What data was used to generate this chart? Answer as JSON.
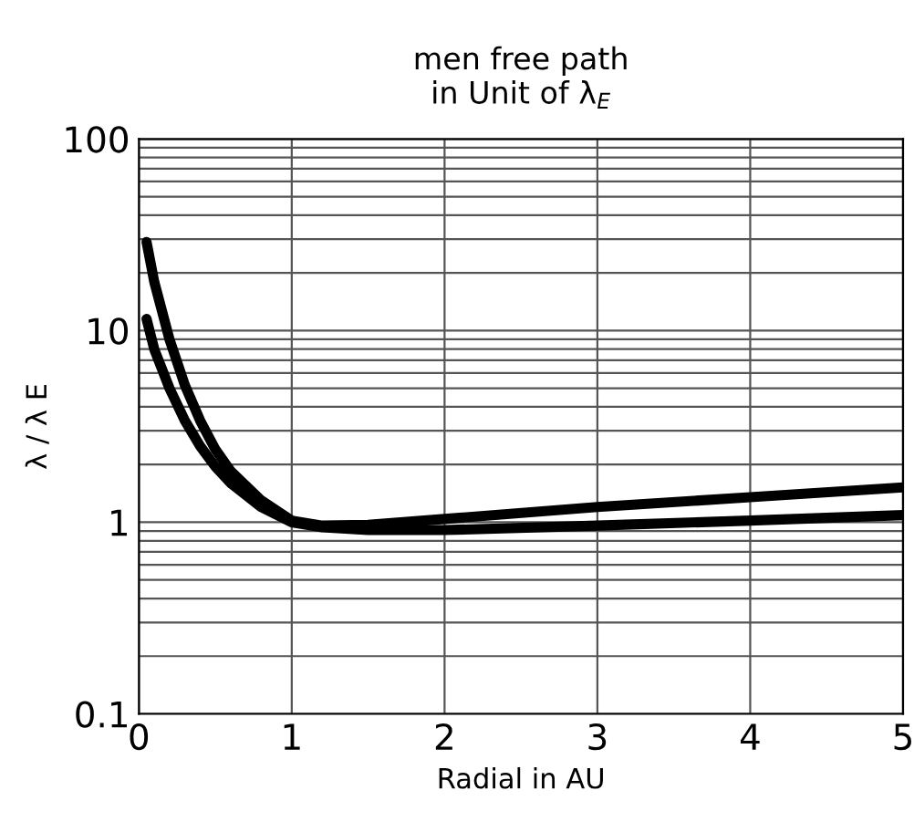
{
  "chart_data": {
    "type": "line",
    "title": "men free path\nin Unit of λ$_{E}$",
    "xlabel": "Radial in AU",
    "ylabel": "λ / λ E",
    "log": "y",
    "grid": true,
    "legend": false,
    "marker": "none",
    "line_style": "solid",
    "xlim": [
      0,
      5
    ],
    "xticks": [
      0,
      1,
      2,
      3,
      4,
      5
    ],
    "ylim": [
      0.1,
      100
    ],
    "yticks": [
      {
        "value": 0.1,
        "label": "0.1"
      },
      {
        "value": 0.2,
        "label": null
      },
      {
        "value": 0.3,
        "label": null
      },
      {
        "value": 0.4,
        "label": null
      },
      {
        "value": 0.5,
        "label": null
      },
      {
        "value": 0.6,
        "label": null
      },
      {
        "value": 0.7,
        "label": null
      },
      {
        "value": 0.8,
        "label": null
      },
      {
        "value": 0.9,
        "label": null
      },
      1,
      {
        "value": 2,
        "label": null
      },
      {
        "value": 3,
        "label": null
      },
      {
        "value": 4,
        "label": null
      },
      {
        "value": 5,
        "label": null
      },
      {
        "value": 6,
        "label": null
      },
      {
        "value": 7,
        "label": null
      },
      {
        "value": 8,
        "label": null
      },
      {
        "value": 9,
        "label": null
      },
      10,
      {
        "value": 20,
        "label": null
      },
      {
        "value": 30,
        "label": null
      },
      {
        "value": 40,
        "label": null
      },
      {
        "value": 50,
        "label": null
      },
      {
        "value": 60,
        "label": null
      },
      {
        "value": 70,
        "label": null
      },
      {
        "value": 80,
        "label": null
      },
      {
        "value": 90,
        "label": null
      },
      100
    ],
    "series": [
      {
        "color": "#000000",
        "x": [
          0.05,
          0.1,
          0.2,
          0.3,
          0.4,
          0.5,
          0.6,
          0.8,
          1.0,
          1.2,
          1.5,
          2,
          3,
          4,
          5
        ],
        "values": [
          29,
          18,
          9,
          5.2,
          3.4,
          2.4,
          1.85,
          1.3,
          1.02,
          0.96,
          0.97,
          1.04,
          1.2,
          1.35,
          1.52
        ]
      },
      {
        "color": "#000000",
        "x": [
          0.05,
          0.1,
          0.2,
          0.3,
          0.4,
          0.5,
          0.6,
          0.8,
          1.0,
          1.2,
          1.5,
          2,
          3,
          4,
          5
        ],
        "values": [
          11.5,
          8,
          5,
          3.4,
          2.5,
          1.95,
          1.6,
          1.2,
          1.0,
          0.94,
          0.91,
          0.91,
          0.96,
          1.02,
          1.09
        ]
      }
    ]
  }
}
